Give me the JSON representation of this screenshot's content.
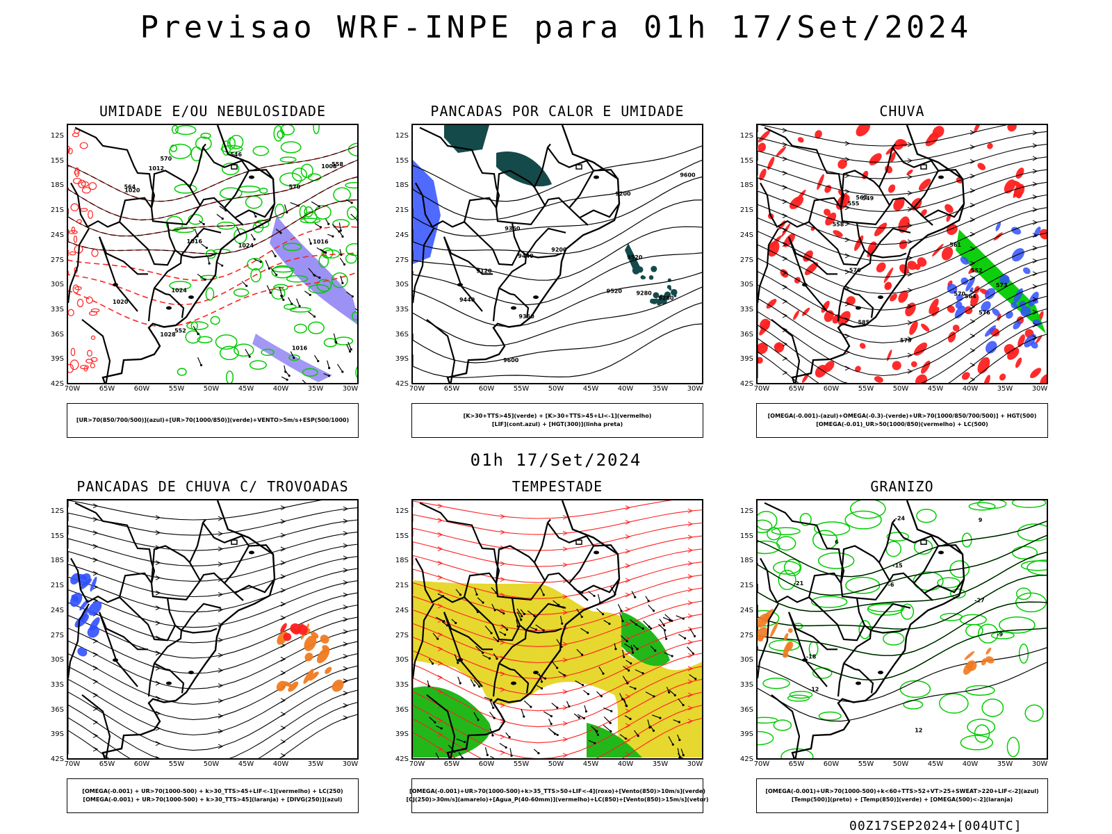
{
  "header": {
    "title": "Previsao WRF-INPE  para 01h 17/Set/2024"
  },
  "mid_title": "01h 17/Set/2024",
  "footer_code": "00Z17SEP2024+[004UTC]",
  "colors": {
    "red": "#ff2020",
    "green": "#00cc00",
    "blue": "#3050ff",
    "purple": "#7b6cf0",
    "teal": "#154a4a",
    "yellow": "#e6d82e",
    "orange": "#f07a20",
    "black": "#000000"
  },
  "axes": {
    "lat_ticks": [
      "12S",
      "15S",
      "18S",
      "21S",
      "24S",
      "27S",
      "30S",
      "33S",
      "36S",
      "39S",
      "42S"
    ],
    "lon_ticks": [
      "70W",
      "65W",
      "60W",
      "55W",
      "50W",
      "45W",
      "40W",
      "35W",
      "30W"
    ]
  },
  "chart_data": [
    {
      "type": "map",
      "title": "UMIDADE E/OU NEBULOSIDADE",
      "legend_lines": [
        "[UR>70(850/700/500)](azul)+[UR>70(1000/850)](verde)+VENTO>5m/s+ESP(500/1000)"
      ],
      "contour_labels": [
        "1012",
        "1016",
        "1016",
        "1016",
        "1020",
        "1020",
        "1024",
        "1028",
        "1024",
        "1008",
        "570",
        "570",
        "564",
        "558",
        "552",
        "546"
      ],
      "fields": [
        "blue",
        "green",
        "red-dashed",
        "black-contour",
        "wind-arrows"
      ]
    },
    {
      "type": "map",
      "title": "PANCADAS POR CALOR E UMIDADE",
      "legend_lines": [
        "[K>30+TTS>45](verde) + [K>30+TTS>45+LI<-1](vermelho)",
        "[LIF](cont.azul) + [HGT(300)](linha preta)"
      ],
      "contour_labels": [
        "9600",
        "9520",
        "9440",
        "9360",
        "9280",
        "9200",
        "9120",
        "9600",
        "9520",
        "9440",
        "9360",
        "9280",
        "9200"
      ],
      "fields": [
        "teal",
        "blue",
        "black-contour"
      ]
    },
    {
      "type": "map",
      "title": "CHUVA",
      "legend_lines": [
        "[OMEGA(-0.001)-(azul)+OMEGA(-0.3)-(verde)+UR>70(1000/850/700/500)] + HGT(500)",
        "[OMEGA(-0.01)_UR>50(1000/850)(vermelho) + LC(500)"
      ],
      "contour_labels": [
        "585",
        "579",
        "576",
        "573",
        "570",
        "567",
        "564",
        "561",
        "558",
        "555",
        "552",
        "549",
        "576"
      ],
      "fields": [
        "red",
        "green",
        "blue",
        "black-streamlines"
      ]
    },
    {
      "type": "map",
      "title": "PANCADAS DE CHUVA C/ TROVOADAS",
      "legend_lines": [
        "[OMEGA(-0.001) + UR>70(1000-500) + k>30_TTS>45+LIF<-1](vermelho) + LC(250)",
        "[OMEGA(-0.001) + UR>70(1000-500) + k>30_TTS>45](laranja) + [DIVG(250)](azul)"
      ],
      "contour_labels": [],
      "fields": [
        "orange",
        "blue",
        "red",
        "black-streamlines"
      ]
    },
    {
      "type": "map",
      "title": "TEMPESTADE",
      "legend_lines": [
        "[OMEGA(-0.001)+UR>70(1000-500)+k>35_TTS>50+LIF<-4](roxo)+[Vento(850)>10m/s](verde)",
        "[CJ(250)>30m/s](amarelo)+[Agua_P(40-60mm)](vermelho)+LC(850)+[Vento(850)>15m/s](vetor)"
      ],
      "contour_labels": [],
      "fields": [
        "yellow",
        "green",
        "red-streamlines",
        "wind-vectors"
      ]
    },
    {
      "type": "map",
      "title": "GRANIZO",
      "legend_lines": [
        "[OMEGA(-0.001)+UR>70(1000-500)+k<60+TTS>52+VT>25+SWEAT>220+LIF<-2](azul)",
        "[Temp(500)](preto) + [Temp(850)](verde) + [OMEGA(500)<-2](laranja)"
      ],
      "contour_labels": [
        "-6",
        "-9",
        "-12",
        "-15",
        "-18",
        "-21",
        "-24",
        "-27",
        "12",
        "9",
        "6"
      ],
      "fields": [
        "green-contour",
        "black-contour",
        "orange"
      ]
    }
  ]
}
